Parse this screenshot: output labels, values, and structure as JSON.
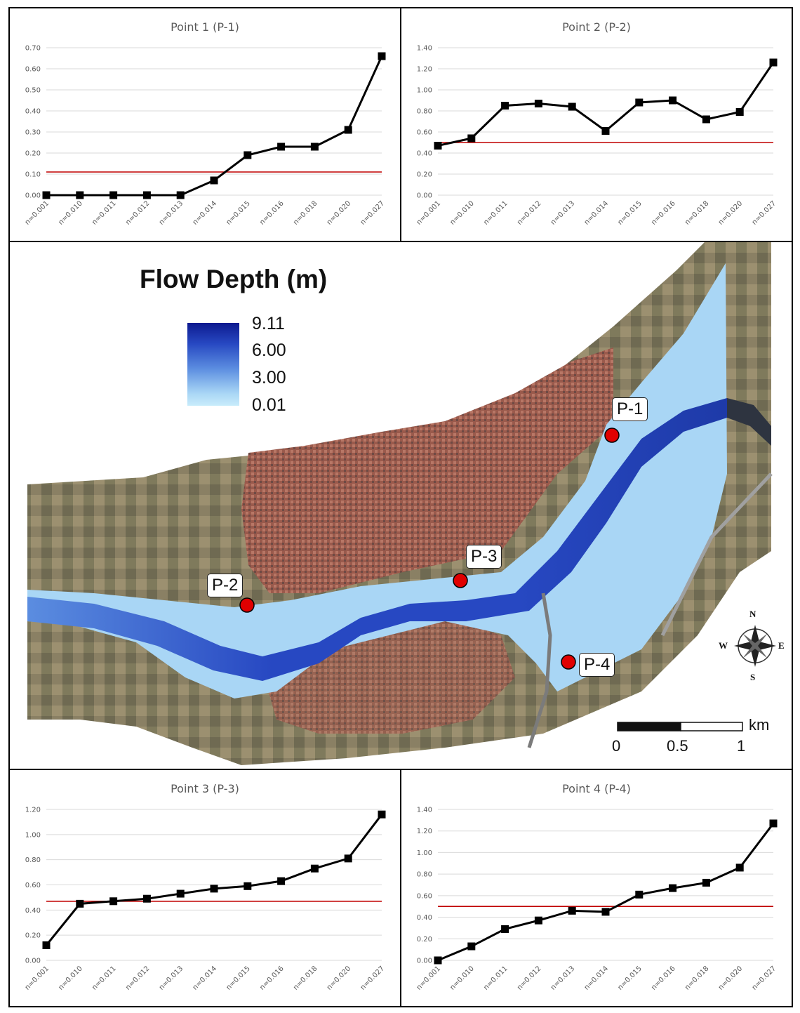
{
  "chart_data": [
    {
      "id": "p1",
      "type": "line",
      "title": "Point 1 (P-1)",
      "categories": [
        "n=0.001",
        "n=0.010",
        "n=0.011",
        "n=0.012",
        "n=0.013",
        "n=0.014",
        "n=0.015",
        "n=0.016",
        "n=0.018",
        "n=0.020",
        "n=0.027"
      ],
      "values": [
        0.0,
        0.0,
        0.0,
        0.0,
        0.0,
        0.07,
        0.19,
        0.23,
        0.23,
        0.31,
        0.66
      ],
      "reference_line": 0.11,
      "ylim": [
        0,
        0.7
      ],
      "yticks": [
        "0.00",
        "0.10",
        "0.20",
        "0.30",
        "0.40",
        "0.50",
        "0.60",
        "0.70"
      ],
      "grid": true,
      "line_color": "#000000",
      "reference_color": "#c00000"
    },
    {
      "id": "p2",
      "type": "line",
      "title": "Point 2 (P-2)",
      "categories": [
        "n=0.001",
        "n=0.010",
        "n=0.011",
        "n=0.012",
        "n=0.013",
        "n=0.014",
        "n=0.015",
        "n=0.016",
        "n=0.018",
        "n=0.020",
        "n=0.027"
      ],
      "values": [
        0.47,
        0.54,
        0.85,
        0.87,
        0.84,
        0.61,
        0.88,
        0.9,
        0.72,
        0.79,
        1.26
      ],
      "reference_line": 0.5,
      "ylim": [
        0,
        1.4
      ],
      "yticks": [
        "0.00",
        "0.20",
        "0.40",
        "0.60",
        "0.80",
        "1.00",
        "1.20",
        "1.40"
      ],
      "grid": true,
      "line_color": "#000000",
      "reference_color": "#c00000"
    },
    {
      "id": "p3",
      "type": "line",
      "title": "Point 3 (P-3)",
      "categories": [
        "n=0.001",
        "n=0.010",
        "n=0.011",
        "n=0.012",
        "n=0.013",
        "n=0.014",
        "n=0.015",
        "n=0.016",
        "n=0.018",
        "n=0.020",
        "n=0.027"
      ],
      "values": [
        0.12,
        0.45,
        0.47,
        0.49,
        0.53,
        0.57,
        0.59,
        0.63,
        0.73,
        0.81,
        1.16
      ],
      "reference_line": 0.47,
      "ylim": [
        0,
        1.2
      ],
      "yticks": [
        "0.00",
        "0.20",
        "0.40",
        "0.60",
        "0.80",
        "1.00",
        "1.20"
      ],
      "grid": true,
      "line_color": "#000000",
      "reference_color": "#c00000"
    },
    {
      "id": "p4",
      "type": "line",
      "title": "Point 4 (P-4)",
      "categories": [
        "n=0.001",
        "n=0.010",
        "n=0.011",
        "n=0.012",
        "n=0.013",
        "n=0.014",
        "n=0.015",
        "n=0.016",
        "n=0.018",
        "n=0.020",
        "n=0.027"
      ],
      "values": [
        0.0,
        0.13,
        0.29,
        0.37,
        0.46,
        0.45,
        0.61,
        0.67,
        0.72,
        0.86,
        1.27
      ],
      "reference_line": 0.5,
      "ylim": [
        0,
        1.4
      ],
      "yticks": [
        "0.00",
        "0.20",
        "0.40",
        "0.60",
        "0.80",
        "1.00",
        "1.20",
        "1.40"
      ],
      "grid": true,
      "line_color": "#000000",
      "reference_color": "#c00000"
    }
  ],
  "map": {
    "legend_title": "Flow Depth (m)",
    "legend_values": [
      "9.11",
      "6.00",
      "3.00",
      "0.01"
    ],
    "legend_colors": [
      "#0d1a8f",
      "#2748c2",
      "#5b8de0",
      "#c9ecfb"
    ],
    "points": [
      "P-1",
      "P-2",
      "P-3",
      "P-4"
    ],
    "point_color": "#e00000",
    "compass": {
      "n": "N",
      "s": "S",
      "e": "E",
      "w": "W"
    },
    "scale": {
      "unit": "km",
      "ticks": [
        "0",
        "0.5",
        "1"
      ]
    }
  }
}
